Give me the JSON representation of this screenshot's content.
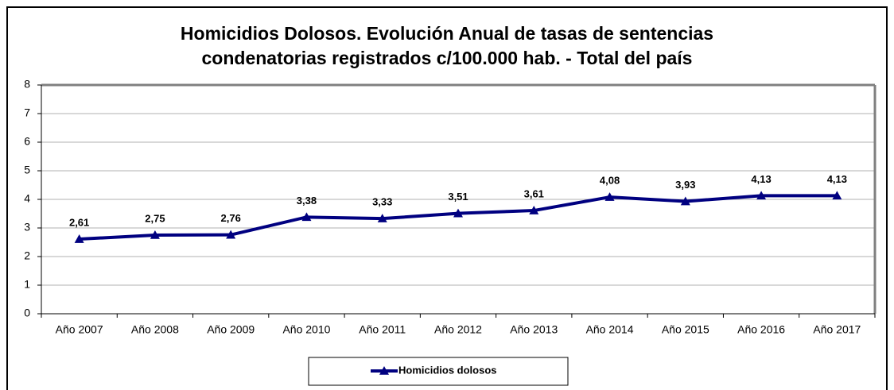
{
  "chart_data": {
    "type": "line",
    "title": [
      "Homicidios Dolosos. Evolución Anual de tasas de sentencias",
      "condenatorias registrados c/100.000 hab. - Total del país"
    ],
    "categories": [
      "Año 2007",
      "Año 2008",
      "Año 2009",
      "Año 2010",
      "Año 2011",
      "Año 2012",
      "Año 2013",
      "Año 2014",
      "Año 2015",
      "Año 2016",
      "Año 2017"
    ],
    "series": [
      {
        "name": "Homicidios dolosos",
        "color": "#000080",
        "values": [
          2.61,
          2.75,
          2.76,
          3.38,
          3.33,
          3.51,
          3.61,
          4.08,
          3.93,
          4.13,
          4.13
        ],
        "value_labels": [
          "2,61",
          "2,75",
          "2,76",
          "3,38",
          "3,33",
          "3,51",
          "3,61",
          "4,08",
          "3,93",
          "4,13",
          "4,13"
        ]
      }
    ],
    "ylim": [
      0,
      8
    ],
    "yticks": [
      0,
      1,
      2,
      3,
      4,
      5,
      6,
      7,
      8
    ],
    "grid": true,
    "legend": "bottom"
  }
}
